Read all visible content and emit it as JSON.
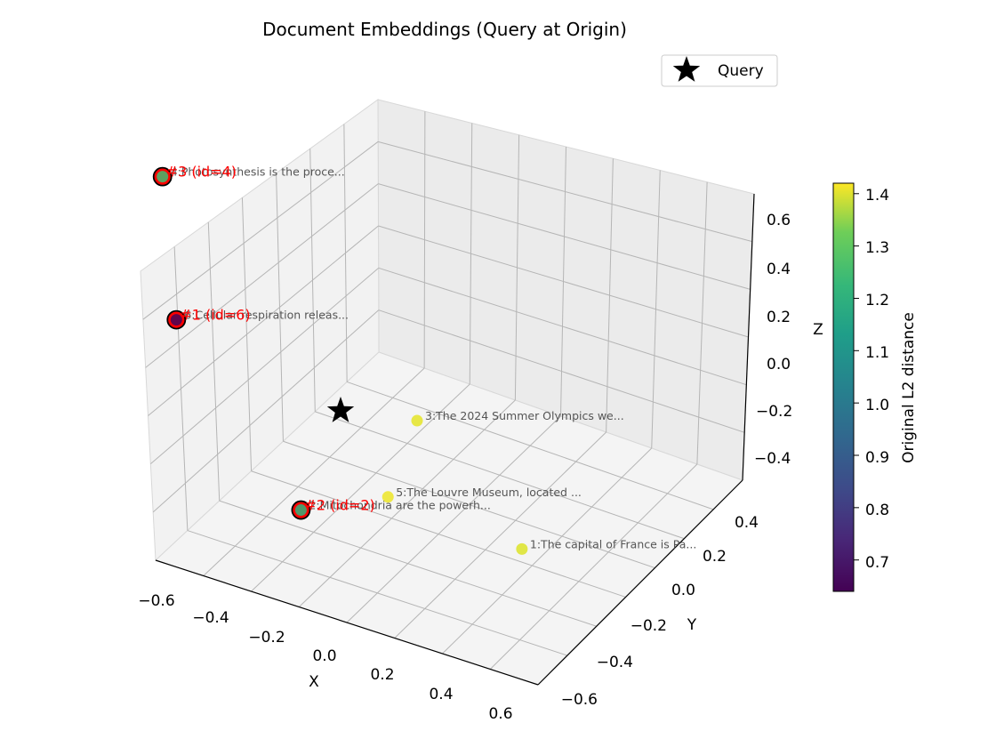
{
  "chart_data": {
    "type": "scatter",
    "title": "Document Embeddings (Query at Origin)",
    "xlabel": "X",
    "ylabel": "Y",
    "zlabel": "Z",
    "xticks": [
      "−0.6",
      "−0.4",
      "−0.2",
      "0.0",
      "0.2",
      "0.4",
      "0.6"
    ],
    "yticks": [
      "−0.6",
      "−0.4",
      "−0.2",
      "0.0",
      "0.2",
      "0.4"
    ],
    "zticks": [
      "−0.4",
      "−0.2",
      "0.0",
      "0.2",
      "0.4",
      "0.6"
    ],
    "grid": true,
    "legend": {
      "placement": "top-right",
      "entries": [
        "Query"
      ]
    },
    "query": {
      "x": 0,
      "y": 0,
      "z": 0,
      "label": "Query",
      "marker": "star",
      "color": "#000000"
    },
    "colorbar": {
      "label": "Original L2 distance",
      "colormap": "viridis",
      "ticks": [
        "0.7",
        "0.8",
        "0.9",
        "1.0",
        "1.1",
        "1.2",
        "1.3",
        "1.4"
      ],
      "range": [
        0.64,
        1.42
      ]
    },
    "points": [
      {
        "id": 4,
        "label": "4:Photosynthesis is the proce...",
        "distance": 1.18,
        "rank_label": "#3 (id=4)",
        "highlight": true,
        "x": -0.6,
        "y": -0.05,
        "z": 0.68
      },
      {
        "id": 6,
        "label": "6:Cellular respiration releas...",
        "distance": 0.65,
        "rank_label": "#1 (id=6)",
        "highlight": true,
        "x": -0.4,
        "y": 0.2,
        "z": 0.05
      },
      {
        "id": 2,
        "label": "2:Mitochondria are the powerh...",
        "distance": 1.14,
        "rank_label": "#2 (id=2)",
        "highlight": true,
        "x": -0.34,
        "y": -0.4,
        "z": -0.23
      },
      {
        "id": 3,
        "label": "3:The 2024 Summer Olympics we...",
        "distance": 1.39,
        "rank_label": "",
        "highlight": false,
        "x": 0.55,
        "y": 0.55,
        "z": -0.2
      },
      {
        "id": 1,
        "label": "1:The capital of France is Pa...",
        "distance": 1.38,
        "rank_label": "",
        "highlight": false,
        "x": 0.6,
        "y": 0.05,
        "z": -0.32
      },
      {
        "id": 5,
        "label": "5:The Louvre Museum, located ...",
        "distance": 1.4,
        "rank_label": "",
        "highlight": false,
        "x": 0.2,
        "y": 0.08,
        "z": -0.3
      }
    ]
  }
}
